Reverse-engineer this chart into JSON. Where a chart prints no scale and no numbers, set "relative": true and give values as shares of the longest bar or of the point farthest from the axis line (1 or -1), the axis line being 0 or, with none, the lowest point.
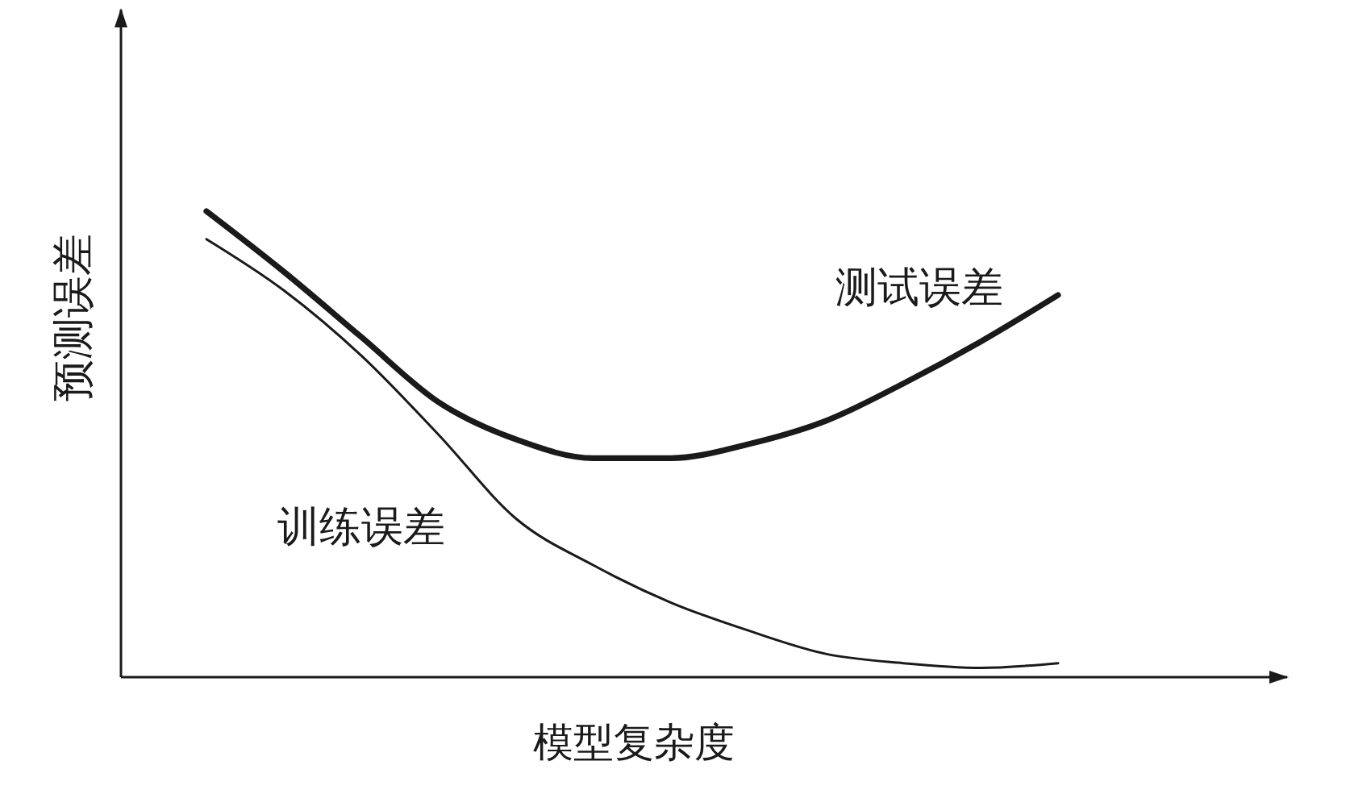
{
  "chart_data": {
    "type": "line",
    "relative": true,
    "xlabel": "模型复杂度",
    "ylabel": "预测误差",
    "categories": [
      null,
      null,
      null,
      null,
      null,
      null,
      null,
      null,
      null,
      null,
      null,
      null
    ],
    "series": [
      {
        "name": "测试误差",
        "color": "#1a1a1a",
        "values": [
          1,
          0.87,
          0.73,
          0.59,
          0.51,
          0.47,
          0.47,
          0.5,
          0.55,
          0.63,
          0.72,
          0.82
        ]
      },
      {
        "name": "训练误差",
        "color": "#1a1a1a",
        "values": [
          0.94,
          0.83,
          0.69,
          0.52,
          0.34,
          0.24,
          0.16,
          0.1,
          0.05,
          0.03,
          0.02,
          0.03
        ]
      }
    ]
  }
}
